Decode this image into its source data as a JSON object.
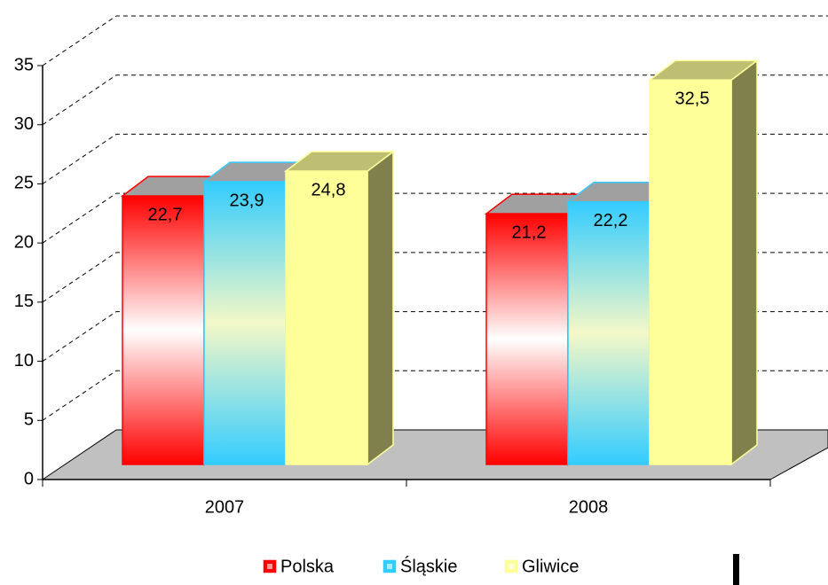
{
  "chart_data": {
    "type": "bar3d",
    "categories": [
      "2007",
      "2008"
    ],
    "series": [
      {
        "name": "Polska",
        "color": "#ff0000",
        "values": [
          22.7,
          21.2
        ],
        "value_labels": [
          "22,7",
          "21,2"
        ]
      },
      {
        "name": "Śląskie",
        "color": "#33ccff",
        "values": [
          23.9,
          22.2
        ],
        "value_labels": [
          "23,9",
          "22,2"
        ]
      },
      {
        "name": "Gliwice",
        "color": "#ffff99",
        "values": [
          24.8,
          32.5
        ],
        "value_labels": [
          "24,8",
          "32,5"
        ]
      }
    ],
    "ylim": [
      0,
      35
    ],
    "yticks": [
      0,
      5,
      10,
      15,
      20,
      25,
      30,
      35
    ],
    "grid": true,
    "legend": "bottom"
  }
}
